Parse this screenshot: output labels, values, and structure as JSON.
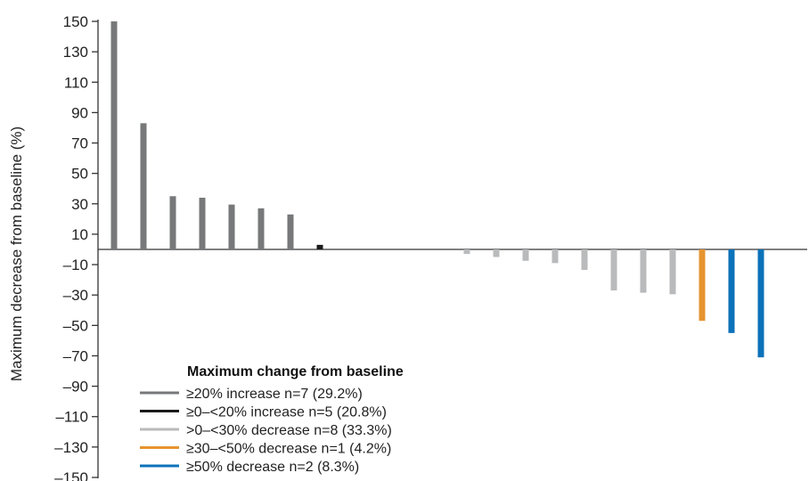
{
  "chart_data": {
    "type": "bar",
    "title": "",
    "xlabel": "",
    "ylabel": "Maximum decrease from baseline (%)",
    "ylim": [
      -150,
      150
    ],
    "yticks": [
      150,
      130,
      110,
      90,
      70,
      50,
      30,
      10,
      -10,
      -30,
      -50,
      -70,
      -90,
      -110,
      -130,
      -150
    ],
    "ytick_labels": [
      "150",
      "130",
      "110",
      "90",
      "70",
      "50",
      "30",
      "10",
      "–10",
      "–30",
      "–50",
      "–70",
      "–90",
      "–110",
      "–130",
      "–150"
    ],
    "grid": false,
    "legend": {
      "title": "Maximum change from baseline",
      "placement": "bottom-left",
      "entries": [
        {
          "label": "≥20% increase n=7 (29.2%)",
          "group": "inc20",
          "color": "#76787a"
        },
        {
          "label": "≥0–<20% increase n=5 (20.8%)",
          "group": "inc0",
          "color": "#1a1a1a"
        },
        {
          "label": ">0–<30% decrease n=8 (33.3%)",
          "group": "dec0",
          "color": "#b9babb"
        },
        {
          "label": "≥30–<50% decrease n=1 (4.2%)",
          "group": "dec30",
          "color": "#e69430"
        },
        {
          "label": "≥50% decrease n=2 (8.3%)",
          "group": "dec50",
          "color": "#0c72b9"
        }
      ]
    },
    "bars": [
      {
        "value": 150,
        "group": "inc20"
      },
      {
        "value": 83,
        "group": "inc20"
      },
      {
        "value": 35,
        "group": "inc20"
      },
      {
        "value": 34,
        "group": "inc20"
      },
      {
        "value": 29.5,
        "group": "inc20"
      },
      {
        "value": 27,
        "group": "inc20"
      },
      {
        "value": 23,
        "group": "inc20"
      },
      {
        "value": 3,
        "group": "inc0"
      },
      {
        "value": 0,
        "group": "inc0"
      },
      {
        "value": 0,
        "group": "inc0"
      },
      {
        "value": 0,
        "group": "inc0"
      },
      {
        "value": 0,
        "group": "inc0"
      },
      {
        "value": -3,
        "group": "dec0"
      },
      {
        "value": -5,
        "group": "dec0"
      },
      {
        "value": -7.5,
        "group": "dec0"
      },
      {
        "value": -9,
        "group": "dec0"
      },
      {
        "value": -13.5,
        "group": "dec0"
      },
      {
        "value": -27,
        "group": "dec0"
      },
      {
        "value": -28.5,
        "group": "dec0"
      },
      {
        "value": -29.5,
        "group": "dec0"
      },
      {
        "value": -47,
        "group": "dec30"
      },
      {
        "value": -55,
        "group": "dec50"
      },
      {
        "value": -71,
        "group": "dec50"
      }
    ]
  }
}
